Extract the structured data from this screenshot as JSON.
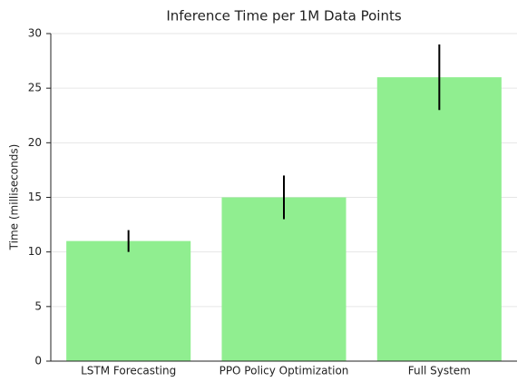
{
  "chart_data": {
    "type": "bar",
    "title": "Inference Time per 1M Data Points",
    "y_label": "Time (milliseconds)",
    "categories": [
      "LSTM Forecasting",
      "PPO Policy Optimization",
      "Full System"
    ],
    "values": [
      11,
      15,
      26
    ],
    "errors": [
      1,
      2,
      3
    ],
    "color": "#90ee90",
    "error_color": "#000000",
    "ylim": [
      0,
      30
    ],
    "yticks": [
      0,
      5,
      10,
      15,
      20,
      25,
      30
    ],
    "grid": true
  }
}
